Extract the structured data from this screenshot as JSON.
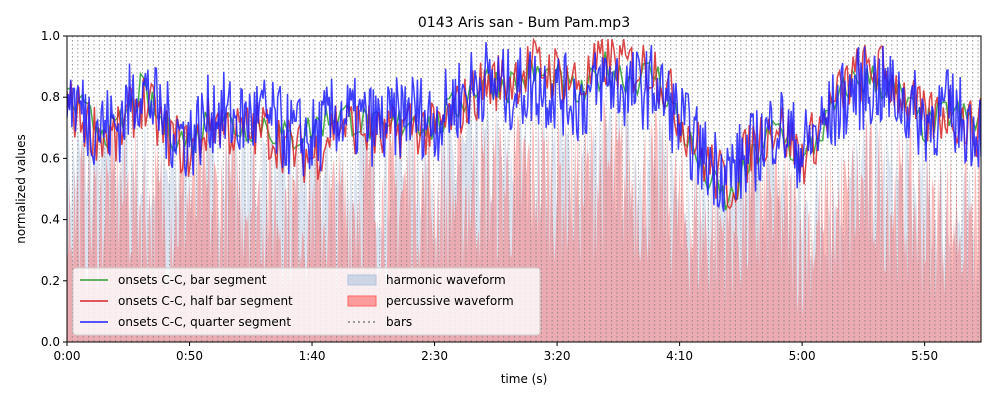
{
  "chart_data": {
    "type": "line",
    "title": "0143 Aris san - Bum Pam.mp3",
    "xlabel": "time (s)",
    "ylabel": "normalized values",
    "xlim": [
      0,
      373
    ],
    "ylim": [
      0,
      1
    ],
    "x_ticks": [
      {
        "value": 0,
        "label": "0:00"
      },
      {
        "value": 50,
        "label": "0:50"
      },
      {
        "value": 100,
        "label": "1:40"
      },
      {
        "value": 150,
        "label": "2:30"
      },
      {
        "value": 200,
        "label": "3:20"
      },
      {
        "value": 250,
        "label": "4:10"
      },
      {
        "value": 300,
        "label": "5:00"
      },
      {
        "value": 350,
        "label": "5:50"
      }
    ],
    "y_ticks": [
      {
        "value": 0.0,
        "label": "0.0"
      },
      {
        "value": 0.2,
        "label": "0.2"
      },
      {
        "value": 0.4,
        "label": "0.4"
      },
      {
        "value": 0.6,
        "label": "0.6"
      },
      {
        "value": 0.8,
        "label": "0.8"
      },
      {
        "value": 1.0,
        "label": "1.0"
      }
    ],
    "bar_interval_s": 2.2,
    "grid": false,
    "legend_position": "lower-left",
    "series": [
      {
        "name": "onsets C-C, bar segment",
        "kind": "line",
        "color": "#2ca02c",
        "x": [
          0,
          10,
          20,
          30,
          40,
          50,
          60,
          70,
          80,
          90,
          100,
          110,
          120,
          130,
          140,
          150,
          160,
          170,
          180,
          190,
          200,
          210,
          220,
          230,
          240,
          250,
          260,
          270,
          280,
          290,
          300,
          310,
          320,
          330,
          340,
          350,
          360,
          370
        ],
        "values": [
          0.8,
          0.72,
          0.68,
          0.82,
          0.7,
          0.65,
          0.75,
          0.7,
          0.72,
          0.66,
          0.7,
          0.75,
          0.72,
          0.68,
          0.74,
          0.7,
          0.78,
          0.86,
          0.84,
          0.88,
          0.85,
          0.8,
          0.9,
          0.86,
          0.88,
          0.72,
          0.55,
          0.45,
          0.6,
          0.7,
          0.58,
          0.72,
          0.85,
          0.86,
          0.8,
          0.7,
          0.75,
          0.72
        ]
      },
      {
        "name": "onsets C-C, half bar segment",
        "kind": "line",
        "color": "#d62728",
        "x": [
          0,
          10,
          20,
          30,
          40,
          50,
          60,
          70,
          80,
          90,
          100,
          110,
          120,
          130,
          140,
          150,
          160,
          170,
          180,
          190,
          200,
          210,
          220,
          230,
          240,
          250,
          260,
          270,
          280,
          290,
          300,
          310,
          320,
          330,
          340,
          350,
          360,
          370
        ],
        "values": [
          0.78,
          0.7,
          0.66,
          0.8,
          0.68,
          0.62,
          0.73,
          0.68,
          0.7,
          0.64,
          0.6,
          0.72,
          0.7,
          0.66,
          0.72,
          0.68,
          0.76,
          0.84,
          0.86,
          0.9,
          0.88,
          0.84,
          0.92,
          0.9,
          0.9,
          0.74,
          0.6,
          0.5,
          0.65,
          0.72,
          0.6,
          0.74,
          0.86,
          0.9,
          0.82,
          0.72,
          0.76,
          0.7
        ]
      },
      {
        "name": "onsets C-C, quarter segment",
        "kind": "line",
        "color": "#1f1fff",
        "x": [
          0,
          10,
          20,
          30,
          40,
          50,
          60,
          70,
          80,
          90,
          100,
          110,
          120,
          130,
          140,
          150,
          160,
          170,
          180,
          190,
          200,
          210,
          220,
          230,
          240,
          250,
          260,
          270,
          280,
          290,
          300,
          310,
          320,
          330,
          340,
          350,
          360,
          370
        ],
        "values": [
          0.82,
          0.72,
          0.7,
          0.84,
          0.72,
          0.66,
          0.76,
          0.72,
          0.74,
          0.68,
          0.66,
          0.74,
          0.72,
          0.7,
          0.76,
          0.72,
          0.8,
          0.86,
          0.82,
          0.84,
          0.82,
          0.78,
          0.86,
          0.82,
          0.84,
          0.72,
          0.6,
          0.55,
          0.62,
          0.72,
          0.62,
          0.72,
          0.82,
          0.84,
          0.8,
          0.72,
          0.76,
          0.7
        ]
      },
      {
        "name": "harmonic waveform",
        "kind": "area",
        "color": "#b0c4de",
        "x": [
          0,
          10,
          20,
          30,
          40,
          50,
          60,
          70,
          80,
          90,
          100,
          110,
          120,
          130,
          140,
          150,
          160,
          170,
          180,
          190,
          200,
          210,
          220,
          230,
          240,
          250,
          260,
          270,
          280,
          290,
          300,
          310,
          320,
          330,
          340,
          350,
          360,
          370
        ],
        "values": [
          0.55,
          0.6,
          0.62,
          0.55,
          0.5,
          0.58,
          0.55,
          0.6,
          0.56,
          0.52,
          0.55,
          0.5,
          0.58,
          0.55,
          0.6,
          0.56,
          0.58,
          0.6,
          0.55,
          0.58,
          0.6,
          0.56,
          0.58,
          0.6,
          0.55,
          0.5,
          0.45,
          0.5,
          0.55,
          0.5,
          0.4,
          0.45,
          0.5,
          0.55,
          0.5,
          0.45,
          0.4,
          0.35
        ]
      },
      {
        "name": "percussive waveform",
        "kind": "area",
        "color": "#ff6666",
        "x": [
          0,
          10,
          20,
          30,
          40,
          50,
          60,
          70,
          80,
          90,
          100,
          110,
          120,
          130,
          140,
          150,
          160,
          170,
          180,
          190,
          200,
          210,
          220,
          230,
          240,
          250,
          260,
          270,
          280,
          290,
          300,
          310,
          320,
          330,
          340,
          350,
          360,
          370
        ],
        "values": [
          0.45,
          0.4,
          0.5,
          0.45,
          0.42,
          0.48,
          0.44,
          0.5,
          0.46,
          0.42,
          0.45,
          0.4,
          0.48,
          0.45,
          0.5,
          0.46,
          0.48,
          0.52,
          0.5,
          0.55,
          0.52,
          0.5,
          0.55,
          0.52,
          0.5,
          0.42,
          0.35,
          0.38,
          0.4,
          0.42,
          0.35,
          0.38,
          0.45,
          0.5,
          0.45,
          0.4,
          0.42,
          0.38
        ]
      },
      {
        "name": "bars",
        "kind": "vlines",
        "color": "#808080"
      }
    ]
  },
  "colors": {
    "bar_segment": "#2ca02c",
    "half_bar_segment": "#d62728",
    "quarter_segment": "#1f1fff",
    "harmonic": "#b0c4de",
    "percussive": "#ff6666",
    "bars": "#808080"
  }
}
